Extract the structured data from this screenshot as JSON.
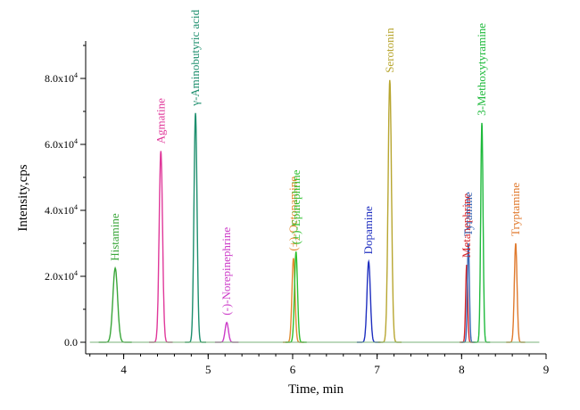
{
  "chart_data": {
    "type": "line",
    "xlabel": "Time, min",
    "ylabel": "Intensity,cps",
    "xlim": [
      3.55,
      9.0
    ],
    "ylim": [
      -3000,
      90000
    ],
    "x_ticks": [
      4,
      5,
      6,
      7,
      8,
      9
    ],
    "x_tick_labels": [
      "4",
      "5",
      "6",
      "7",
      "8",
      "9"
    ],
    "y_ticks": [
      0,
      20000,
      40000,
      60000,
      80000
    ],
    "y_tick_labels": [
      {
        "base": "0.0",
        "exp": ""
      },
      {
        "base": "2.0x10",
        "exp": "4"
      },
      {
        "base": "4.0x10",
        "exp": "4"
      },
      {
        "base": "6.0x10",
        "exp": "4"
      },
      {
        "base": "8.0x10",
        "exp": "4"
      }
    ],
    "grid": false,
    "legend": "none",
    "series": [
      {
        "name": "Histamine",
        "color": "#3aa63a",
        "peak_x": 3.9,
        "peak_y": 22500,
        "width": 0.028
      },
      {
        "name": "Agmatine",
        "color": "#e0389a",
        "peak_x": 4.44,
        "peak_y": 58000,
        "width": 0.02
      },
      {
        "name": "γ-Aminobutyric acid",
        "color": "#1e8f6e",
        "peak_x": 4.85,
        "peak_y": 69500,
        "width": 0.018
      },
      {
        "name": "(-)-Norepinephrine",
        "color": "#cc3cc8",
        "peak_x": 5.22,
        "peak_y": 6000,
        "width": 0.02
      },
      {
        "name": "(±)-Octopamine",
        "color": "#e08a2e",
        "peak_x": 6.01,
        "peak_y": 25500,
        "width": 0.018
      },
      {
        "name": "(±)-Epinephrine",
        "color": "#2ec02e",
        "peak_x": 6.04,
        "peak_y": 27500,
        "width": 0.018
      },
      {
        "name": "Dopamine",
        "color": "#1f2fc0",
        "peak_x": 6.9,
        "peak_y": 24500,
        "width": 0.02
      },
      {
        "name": "Serotonin",
        "color": "#b8a630",
        "peak_x": 7.15,
        "peak_y": 79500,
        "width": 0.02
      },
      {
        "name": "Metanephrine",
        "color": "#d8262a",
        "peak_x": 8.06,
        "peak_y": 23500,
        "width": 0.012
      },
      {
        "name": "Tyramine",
        "color": "#3b68b5",
        "peak_x": 8.08,
        "peak_y": 30000,
        "width": 0.012
      },
      {
        "name": "3-Methoxytyramine",
        "color": "#1fba3c",
        "peak_x": 8.24,
        "peak_y": 66500,
        "width": 0.014
      },
      {
        "name": "Tryptamine",
        "color": "#e07a2e",
        "peak_x": 8.64,
        "peak_y": 30000,
        "width": 0.016
      }
    ]
  }
}
